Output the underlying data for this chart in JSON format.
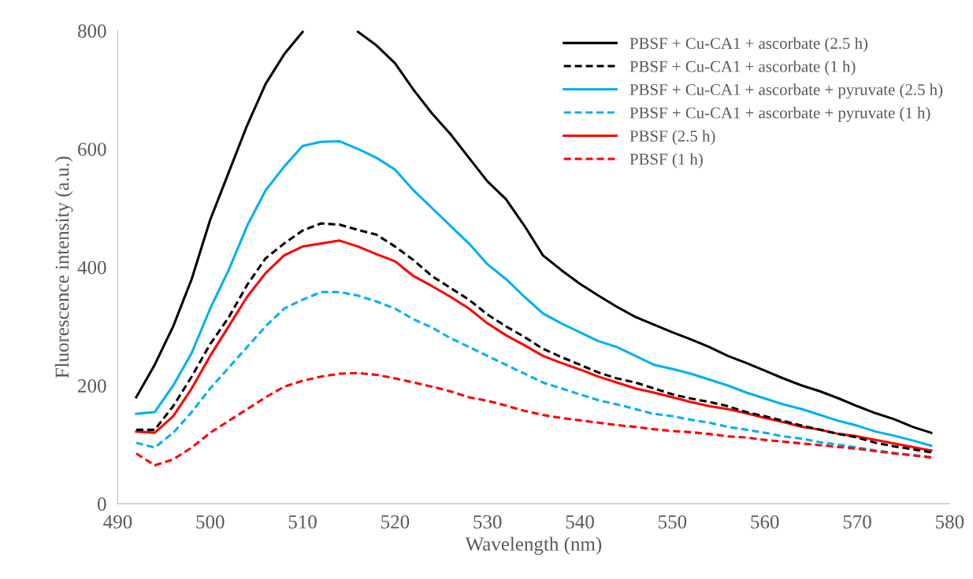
{
  "chart_data": {
    "type": "line",
    "xlabel": "Wavelength (nm)",
    "ylabel": "Fluorescence intensity (a.u.)",
    "x": [
      492,
      494,
      496,
      498,
      500,
      502,
      504,
      506,
      508,
      510,
      512,
      514,
      516,
      518,
      520,
      522,
      524,
      526,
      528,
      530,
      532,
      534,
      536,
      538,
      540,
      542,
      544,
      546,
      548,
      550,
      552,
      554,
      556,
      558,
      560,
      562,
      564,
      566,
      568,
      570,
      572,
      574,
      576,
      578
    ],
    "xlim": [
      490,
      580
    ],
    "xticks": [
      490,
      500,
      510,
      520,
      530,
      540,
      550,
      560,
      570,
      580
    ],
    "ylim": [
      0,
      800
    ],
    "yticks": [
      0,
      200,
      400,
      600,
      800
    ],
    "grid": false,
    "legend": "top right",
    "marker": "none",
    "series": [
      {
        "name": "PBSF + Cu-CA1 + ascorbate (2.5 h)",
        "color": "#000000",
        "line_style": "solid",
        "values": [
          180,
          235,
          300,
          380,
          480,
          560,
          640,
          710,
          760,
          798,
          null,
          null,
          798,
          775,
          745,
          700,
          660,
          625,
          585,
          545,
          515,
          470,
          420,
          395,
          372,
          352,
          333,
          316,
          303,
          290,
          278,
          265,
          250,
          238,
          225,
          212,
          200,
          190,
          178,
          165,
          153,
          143,
          130,
          120
        ]
      },
      {
        "name": "PBSF + Cu-CA1 + ascorbate (1 h)",
        "color": "#000000",
        "line_style": "dashed",
        "values": [
          125,
          125,
          165,
          215,
          270,
          315,
          370,
          415,
          440,
          462,
          474,
          472,
          463,
          455,
          435,
          412,
          385,
          365,
          345,
          320,
          300,
          282,
          262,
          248,
          235,
          222,
          212,
          205,
          195,
          185,
          178,
          172,
          165,
          155,
          148,
          140,
          132,
          125,
          118,
          112,
          103,
          97,
          92,
          87
        ]
      },
      {
        "name": "PBSF + Cu-CA1 + ascorbate + pyruvate (2.5 h)",
        "color": "#00b0f0",
        "line_style": "solid",
        "values": [
          152,
          155,
          200,
          255,
          330,
          395,
          470,
          530,
          570,
          605,
          612,
          613,
          600,
          585,
          565,
          530,
          500,
          470,
          440,
          405,
          380,
          350,
          322,
          305,
          290,
          275,
          265,
          250,
          235,
          228,
          220,
          210,
          200,
          188,
          178,
          168,
          160,
          150,
          140,
          132,
          122,
          115,
          107,
          98
        ]
      },
      {
        "name": "PBSF + Cu-CA1 + ascorbate + pyruvate (1 h)",
        "color": "#00b0f0",
        "line_style": "dashed",
        "values": [
          103,
          95,
          120,
          155,
          195,
          230,
          265,
          300,
          330,
          345,
          358,
          358,
          352,
          342,
          330,
          312,
          298,
          280,
          265,
          250,
          235,
          220,
          205,
          195,
          185,
          175,
          168,
          160,
          152,
          148,
          142,
          137,
          130,
          125,
          120,
          114,
          110,
          104,
          100,
          95,
          90,
          86,
          82,
          79
        ]
      },
      {
        "name": "PBSF (2.5 h)",
        "color": "#ff0000",
        "line_style": "solid",
        "values": [
          122,
          120,
          148,
          195,
          250,
          300,
          350,
          390,
          420,
          435,
          440,
          445,
          435,
          422,
          410,
          385,
          368,
          350,
          330,
          305,
          285,
          268,
          250,
          238,
          227,
          215,
          205,
          195,
          188,
          180,
          172,
          165,
          160,
          153,
          145,
          138,
          130,
          125,
          118,
          114,
          108,
          102,
          96,
          90
        ]
      },
      {
        "name": "PBSF (1 h)",
        "color": "#ff0000",
        "line_style": "dashed",
        "values": [
          85,
          65,
          75,
          95,
          120,
          140,
          160,
          180,
          198,
          208,
          215,
          220,
          221,
          218,
          212,
          205,
          198,
          190,
          180,
          174,
          166,
          157,
          150,
          145,
          141,
          137,
          133,
          130,
          126,
          123,
          121,
          118,
          114,
          112,
          108,
          105,
          102,
          99,
          96,
          93,
          89,
          85,
          82,
          78
        ]
      }
    ]
  }
}
